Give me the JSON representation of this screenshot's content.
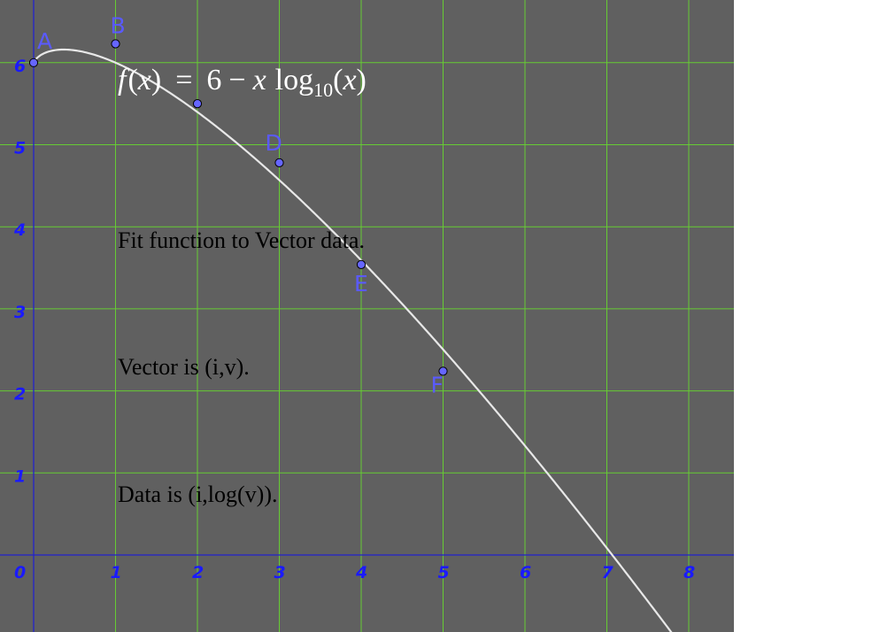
{
  "colors": {
    "background": "#606060",
    "page": "#ffffff",
    "grid": "#66cc33",
    "axis": "#2222cc",
    "tick_label": "#1a1aff",
    "point_fill": "#6666ff",
    "point_label": "#5a5aff",
    "curve": "#e8e8e8",
    "formula": "#ffffff",
    "text": "#000000"
  },
  "formula": {
    "lhs_f": "f",
    "lhs_open": "(",
    "lhs_x": "x",
    "lhs_close": ")",
    "equals": "=",
    "six": "6",
    "minus": "−",
    "x": "x",
    "log": "log",
    "base": "10",
    "arg_open": "(",
    "arg_x": "x",
    "arg_close": ")"
  },
  "annotations": [
    "Fit function to Vector data.",
    "Vector is (i,v).",
    "Data is (i,log(v))."
  ],
  "chart_data": {
    "type": "scatter",
    "function": "f(x) = 6 − x log10(x)",
    "xlim": [
      -0.4,
      8.6
    ],
    "ylim": [
      -0.9,
      6.8
    ],
    "grid": true,
    "x_ticks": [
      "0",
      "1",
      "2",
      "3",
      "4",
      "5",
      "6",
      "7",
      "8"
    ],
    "y_ticks": [
      "1",
      "2",
      "3",
      "4",
      "5",
      "6"
    ],
    "points": [
      {
        "label": "A",
        "x": 0,
        "y": 6.0
      },
      {
        "label": "B",
        "x": 1,
        "y": 6.23
      },
      {
        "label": "",
        "x": 2,
        "y": 5.5
      },
      {
        "label": "D",
        "x": 3,
        "y": 4.78
      },
      {
        "label": "E",
        "x": 4,
        "y": 3.54
      },
      {
        "label": "F",
        "x": 5,
        "y": 2.24
      }
    ]
  }
}
